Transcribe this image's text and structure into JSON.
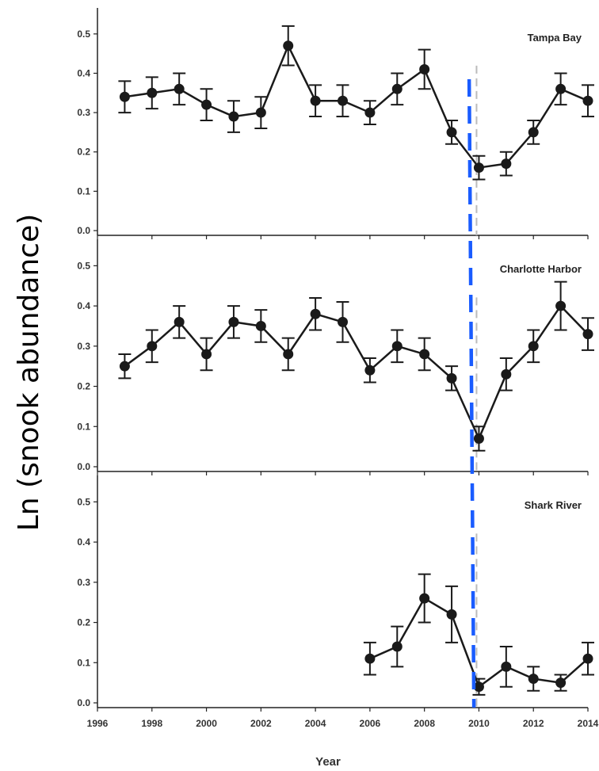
{
  "chart_data": {
    "type": "line",
    "ylabel": "Ln (snook abundance)",
    "xlabel": "Year",
    "xlim": [
      1996,
      2014
    ],
    "ylim": [
      0.0,
      0.55
    ],
    "x_ticks": [
      "1996",
      "1998",
      "2000",
      "2002",
      "2004",
      "2006",
      "2008",
      "2010",
      "2012",
      "2014"
    ],
    "y_ticks": [
      "0.0",
      "0.1",
      "0.2",
      "0.3",
      "0.4",
      "0.5"
    ],
    "reference_line": {
      "x": 2009.7,
      "style": "dashed",
      "color": "#1a5cff"
    },
    "line_color": "#1a1a1a",
    "panels": [
      {
        "title": "Tampa Bay",
        "x": [
          1997,
          1998,
          1999,
          2000,
          2001,
          2002,
          2003,
          2004,
          2005,
          2006,
          2007,
          2008,
          2009,
          2010,
          2011,
          2012,
          2013,
          2014
        ],
        "y": [
          0.34,
          0.35,
          0.36,
          0.32,
          0.29,
          0.3,
          0.47,
          0.33,
          0.33,
          0.3,
          0.36,
          0.41,
          0.25,
          0.16,
          0.17,
          0.25,
          0.36,
          0.33
        ],
        "err": [
          0.04,
          0.04,
          0.04,
          0.04,
          0.04,
          0.04,
          0.05,
          0.04,
          0.04,
          0.03,
          0.04,
          0.05,
          0.03,
          0.03,
          0.03,
          0.03,
          0.04,
          0.04
        ]
      },
      {
        "title": "Charlotte Harbor",
        "x": [
          1997,
          1998,
          1999,
          2000,
          2001,
          2002,
          2003,
          2004,
          2005,
          2006,
          2007,
          2008,
          2009,
          2010,
          2011,
          2012,
          2013,
          2014
        ],
        "y": [
          0.25,
          0.3,
          0.36,
          0.28,
          0.36,
          0.35,
          0.28,
          0.38,
          0.36,
          0.24,
          0.3,
          0.28,
          0.22,
          0.07,
          0.23,
          0.3,
          0.4,
          0.33
        ],
        "err": [
          0.03,
          0.04,
          0.04,
          0.04,
          0.04,
          0.04,
          0.04,
          0.04,
          0.05,
          0.03,
          0.04,
          0.04,
          0.03,
          0.03,
          0.04,
          0.04,
          0.06,
          0.04
        ]
      },
      {
        "title": "Shark River",
        "x": [
          2006,
          2007,
          2008,
          2009,
          2010,
          2011,
          2012,
          2013,
          2014
        ],
        "y": [
          0.11,
          0.14,
          0.26,
          0.22,
          0.04,
          0.09,
          0.06,
          0.05,
          0.11
        ],
        "err": [
          0.04,
          0.05,
          0.06,
          0.07,
          0.02,
          0.05,
          0.03,
          0.02,
          0.04
        ]
      }
    ]
  }
}
